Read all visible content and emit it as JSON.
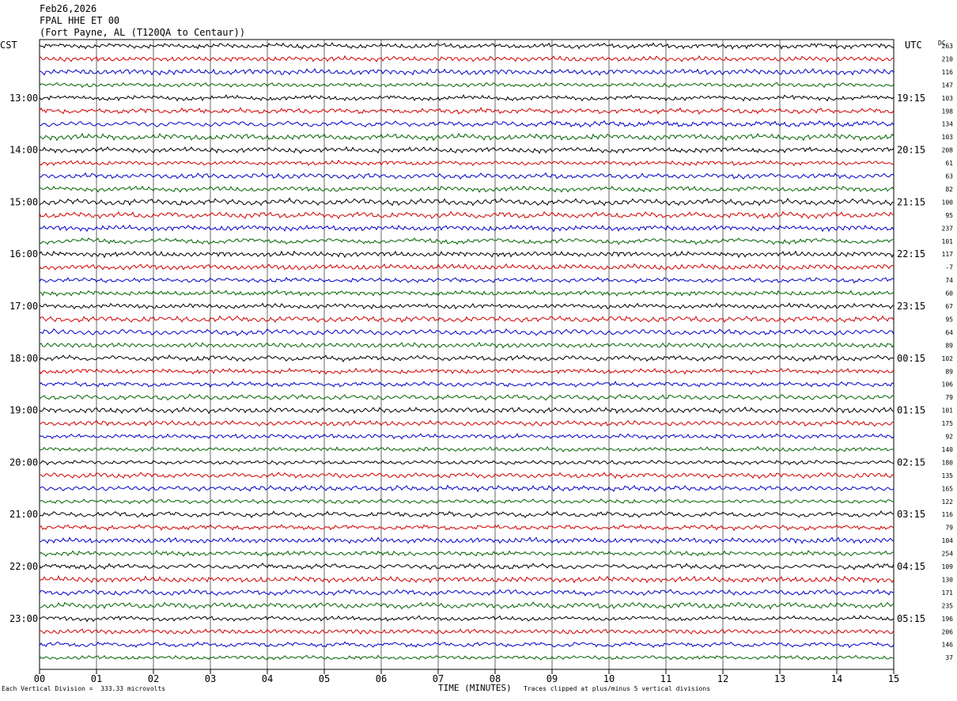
{
  "header": {
    "date": "Feb26,2026",
    "station": "FPAL HHE ET 00",
    "location": "(Fort Payne, AL (T120QA to Centaur))"
  },
  "timezones": {
    "left": "CST",
    "right": "UTC",
    "dc": "DC"
  },
  "footer": {
    "division_note": "Each Vertical Division =  333.33 microvolts",
    "clip_note": "Traces clipped at plus/minus 5 vertical divisions"
  },
  "chart_data": {
    "type": "line",
    "title": "",
    "xlabel": "TIME (MINUTES)",
    "ylabel": "",
    "xlim": [
      0,
      15
    ],
    "x_ticks": [
      "00",
      "01",
      "02",
      "03",
      "04",
      "05",
      "06",
      "07",
      "08",
      "09",
      "10",
      "11",
      "12",
      "13",
      "14",
      "15"
    ],
    "series_colors": [
      "#000000",
      "#d00000",
      "#0000c8",
      "#006400"
    ],
    "grid": true,
    "left_hour_labels": [
      "13:00",
      "14:00",
      "15:00",
      "16:00",
      "17:00",
      "18:00",
      "19:00",
      "20:00",
      "21:00",
      "22:00",
      "23:00"
    ],
    "right_hour_labels": [
      "19:15",
      "20:15",
      "21:15",
      "22:15",
      "23:15",
      "00:15",
      "01:15",
      "02:15",
      "03:15",
      "04:15",
      "05:15"
    ],
    "dc_offsets": [
      "263",
      "210",
      "116",
      "147",
      "103",
      "198",
      "134",
      "103",
      "208",
      "61",
      "63",
      "82",
      "100",
      "95",
      "237",
      "101",
      "117",
      "-7",
      "74",
      "60",
      "67",
      "95",
      "64",
      "89",
      "102",
      "89",
      "106",
      "79",
      "101",
      "175",
      "92",
      "140",
      "180",
      "135",
      "165",
      "122",
      "116",
      "79",
      "104",
      "254",
      "109",
      "130",
      "171",
      "235",
      "196",
      "206",
      "146",
      "37"
    ]
  }
}
